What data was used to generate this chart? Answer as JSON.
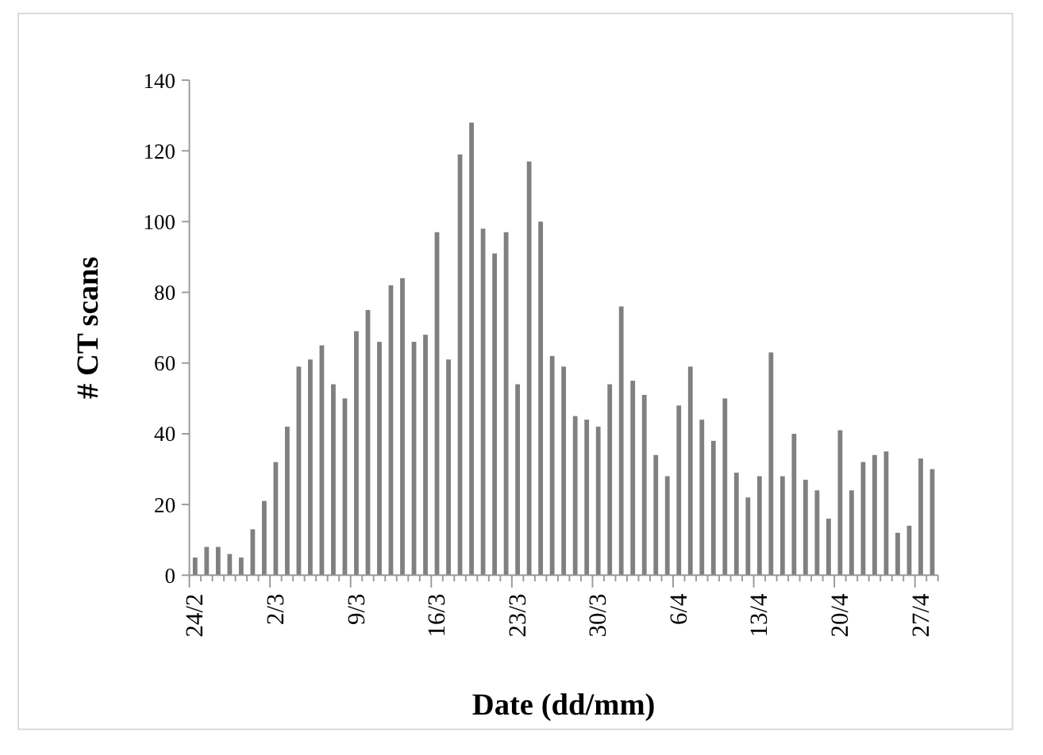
{
  "chart_data": {
    "type": "bar",
    "xlabel": "Date (dd/mm)",
    "ylabel": "# CT scans",
    "categories": [
      "24/2",
      null,
      null,
      null,
      null,
      null,
      null,
      "2/3",
      null,
      null,
      null,
      null,
      null,
      null,
      "9/3",
      null,
      null,
      null,
      null,
      null,
      null,
      "16/3",
      null,
      null,
      null,
      null,
      null,
      null,
      "23/3",
      null,
      null,
      null,
      null,
      null,
      null,
      "30/3",
      null,
      null,
      null,
      null,
      null,
      null,
      "6/4",
      null,
      null,
      null,
      null,
      null,
      null,
      "13/4",
      null,
      null,
      null,
      null,
      null,
      null,
      "20/4",
      null,
      null,
      null,
      null,
      null,
      null,
      "27/4",
      null
    ],
    "values": [
      5,
      8,
      8,
      6,
      5,
      13,
      21,
      32,
      42,
      59,
      61,
      65,
      54,
      50,
      69,
      75,
      66,
      82,
      84,
      66,
      68,
      97,
      61,
      119,
      128,
      98,
      91,
      97,
      54,
      117,
      100,
      62,
      59,
      45,
      44,
      42,
      54,
      76,
      55,
      51,
      34,
      28,
      48,
      59,
      44,
      38,
      50,
      29,
      22,
      28,
      63,
      28,
      40,
      27,
      24,
      16,
      41,
      24,
      32,
      34,
      35,
      12,
      14,
      33,
      30
    ],
    "color": "#808080",
    "ylim": [
      0,
      140
    ],
    "yticks": [
      0,
      20,
      40,
      60,
      80,
      100,
      120,
      140
    ],
    "grid": false
  }
}
